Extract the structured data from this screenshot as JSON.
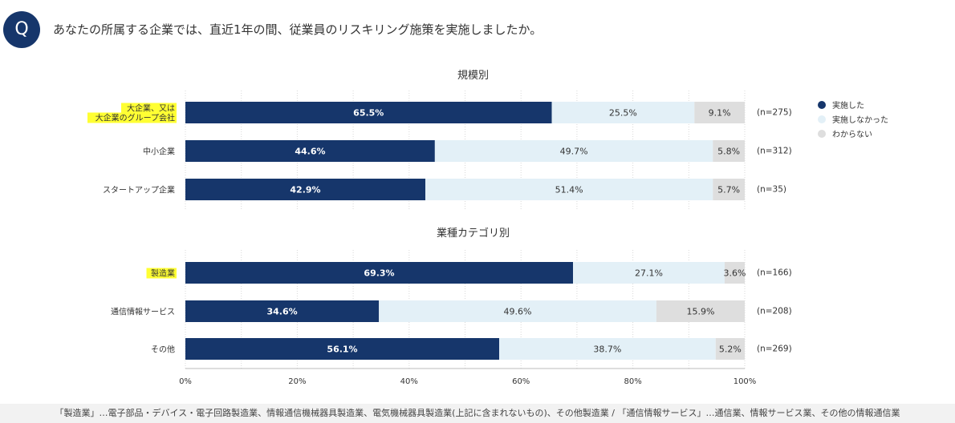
{
  "question": {
    "badge": "Q",
    "text": "あなたの所属する企業では、直近1年の間、従業員のリスキリング施策を実施しましたか。"
  },
  "footnote": "「製造業」…電子部品・デバイス・電子回路製造業、情報通信機械器具製造業、電気機械器具製造業(上記に含まれないもの)、その他製造業 / 「通信情報サービス」…通信業、情報サービス業、その他の情報通信業",
  "colors": {
    "implemented": "#16366b",
    "not_implemented": "#e3f0f7",
    "unknown": "#dedede",
    "highlight": "#ffff33"
  },
  "chart_data": {
    "type": "bar",
    "orientation": "horizontal-stacked-100",
    "xlim": [
      0,
      100
    ],
    "xticks": [
      "0%",
      "20%",
      "40%",
      "60%",
      "80%",
      "100%"
    ],
    "legend": [
      {
        "key": "implemented",
        "label": "実施した"
      },
      {
        "key": "not_implemented",
        "label": "実施しなかった"
      },
      {
        "key": "unknown",
        "label": "わからない"
      }
    ],
    "legend_position": "top-right",
    "groups": [
      {
        "title": "規模別",
        "rows": [
          {
            "label_lines": [
              "大企業、又は",
              "大企業のグループ会社"
            ],
            "highlight": true,
            "values": [
              65.5,
              25.5,
              9.1
            ],
            "labels": [
              "65.5%",
              "25.5%",
              "9.1%"
            ],
            "n": "(n=275)"
          },
          {
            "label_lines": [
              "中小企業"
            ],
            "highlight": false,
            "values": [
              44.6,
              49.7,
              5.8
            ],
            "labels": [
              "44.6%",
              "49.7%",
              "5.8%"
            ],
            "n": "(n=312)"
          },
          {
            "label_lines": [
              "スタートアップ企業"
            ],
            "highlight": false,
            "values": [
              42.9,
              51.4,
              5.7
            ],
            "labels": [
              "42.9%",
              "51.4%",
              "5.7%"
            ],
            "n": "(n=35)"
          }
        ]
      },
      {
        "title": "業種カテゴリ別",
        "rows": [
          {
            "label_lines": [
              "製造業"
            ],
            "highlight": true,
            "values": [
              69.3,
              27.1,
              3.6
            ],
            "labels": [
              "69.3%",
              "27.1%",
              "3.6%"
            ],
            "n": "(n=166)"
          },
          {
            "label_lines": [
              "通信情報サービス"
            ],
            "highlight": false,
            "values": [
              34.6,
              49.6,
              15.9
            ],
            "labels": [
              "34.6%",
              "49.6%",
              "15.9%"
            ],
            "n": "(n=208)"
          },
          {
            "label_lines": [
              "その他"
            ],
            "highlight": false,
            "values": [
              56.1,
              38.7,
              5.2
            ],
            "labels": [
              "56.1%",
              "38.7%",
              "5.2%"
            ],
            "n": "(n=269)"
          }
        ]
      }
    ]
  }
}
